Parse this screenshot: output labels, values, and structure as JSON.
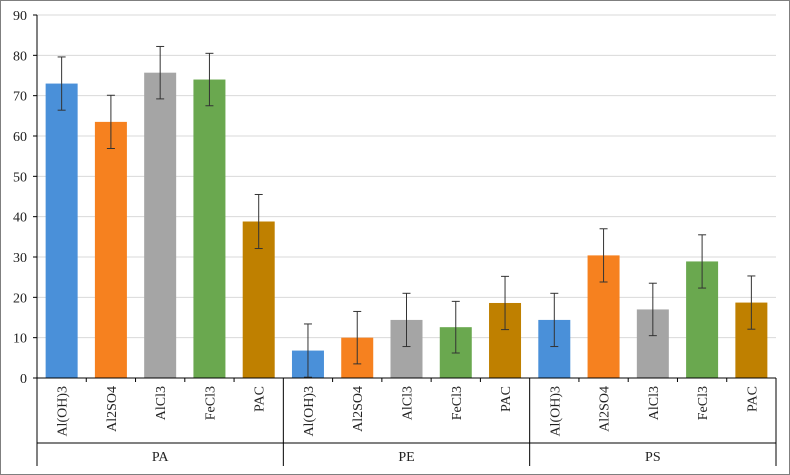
{
  "chart_data": {
    "type": "bar",
    "title": "",
    "xlabel": "",
    "ylabel": "",
    "ylim": [
      0,
      90
    ],
    "yticks": [
      0,
      10,
      20,
      30,
      40,
      50,
      60,
      70,
      80,
      90
    ],
    "grid": "horizontal",
    "groups": [
      "PA",
      "PE",
      "PS"
    ],
    "categories": [
      "Al(OH)3",
      "Al2SO4",
      "AlCl3",
      "FeCl3",
      "PAC"
    ],
    "colors": [
      "#4a90d9",
      "#f6811f",
      "#a5a5a5",
      "#6aa84f",
      "#bf8000"
    ],
    "values": [
      [
        73.0,
        63.5,
        75.7,
        74.0,
        38.8
      ],
      [
        6.8,
        10.0,
        14.4,
        12.6,
        18.6
      ],
      [
        14.4,
        30.4,
        17.0,
        28.9,
        18.7
      ]
    ],
    "errors": [
      [
        6.6,
        6.6,
        6.5,
        6.5,
        6.7
      ],
      [
        6.6,
        6.5,
        6.6,
        6.4,
        6.6
      ],
      [
        6.6,
        6.6,
        6.5,
        6.6,
        6.6
      ]
    ]
  }
}
